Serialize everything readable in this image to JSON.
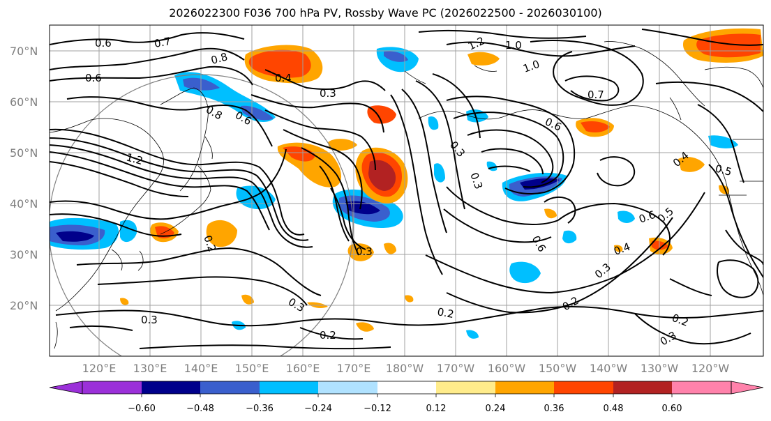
{
  "title": "2026022300 F036 700 hPa PV, Rossby Wave PC (2026022500 - 2026030100)",
  "map": {
    "lat_labels": [
      "70°N",
      "60°N",
      "50°N",
      "40°N",
      "30°N",
      "20°N"
    ],
    "lon_labels": [
      "120°E",
      "130°E",
      "140°E",
      "150°E",
      "160°E",
      "170°E",
      "180°W",
      "170°W",
      "160°W",
      "150°W",
      "140°W",
      "130°W",
      "120°W"
    ],
    "contour_labels": [
      "0.6",
      "0.7",
      "0.8",
      "0.6",
      "0.4",
      "0.3",
      "1.2",
      "1.0",
      "1.0",
      "0.7",
      "0.8",
      "0.6",
      "1.2",
      "0.6",
      "0.3",
      "0.3",
      "0.3",
      "0.2",
      "0.4",
      "0.6",
      "0.5",
      "0.4",
      "0.6",
      "0.5",
      "0.3",
      "0.2",
      "0.2",
      "0.2",
      "0.3",
      "0.3",
      "0.2",
      "0.3"
    ]
  },
  "colorbar": {
    "ticks": [
      "−0.60",
      "−0.48",
      "−0.36",
      "−0.24",
      "−0.12",
      "0.12",
      "0.24",
      "0.36",
      "0.48",
      "0.60"
    ],
    "colors": [
      "#9b30d9",
      "#00008b",
      "#3a5fcd",
      "#00bfff",
      "#b0e2ff",
      "#ffffff",
      "#ffec8b",
      "#ffa500",
      "#ff4500",
      "#b22222",
      "#ff82ab"
    ]
  }
}
